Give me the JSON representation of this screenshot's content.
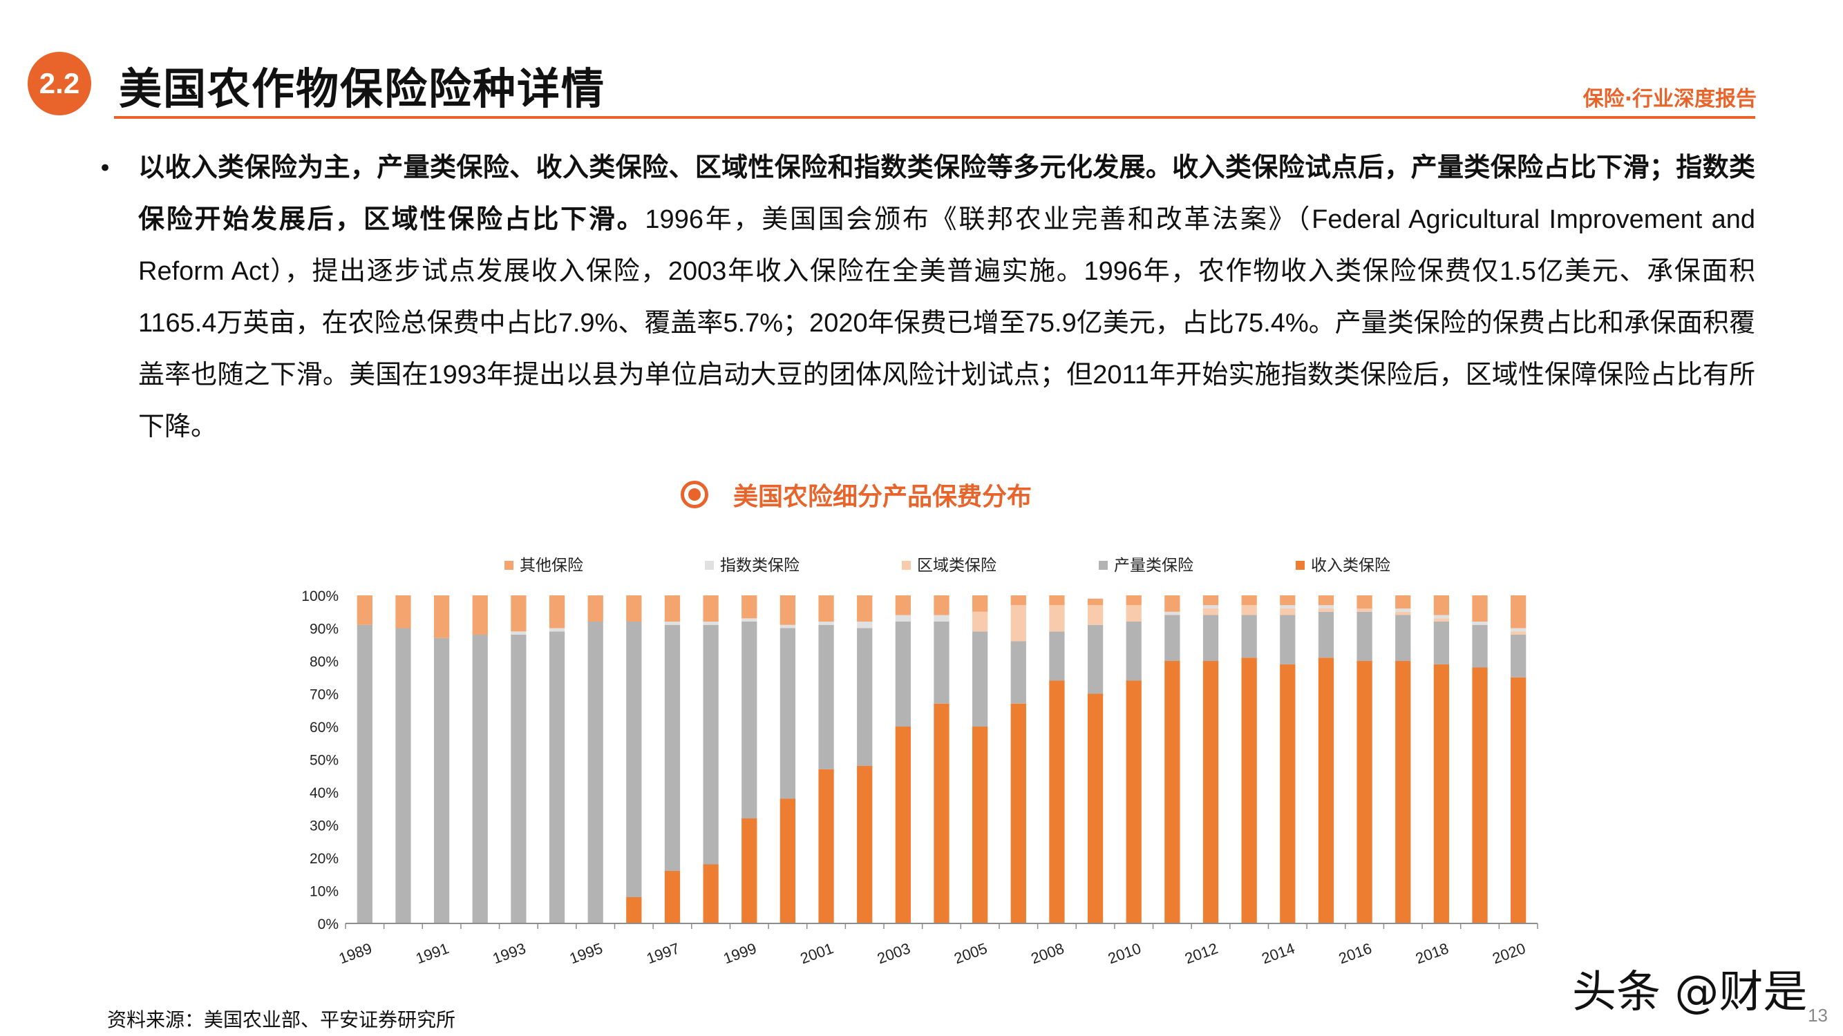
{
  "header": {
    "section_number": "2.2",
    "title": "美国农作物保险险种详情",
    "brand": "保险·行业深度报告"
  },
  "body": {
    "bold_text": "以收入类保险为主，产量类保险、收入类保险、区域性保险和指数类保险等多元化发展。收入类保险试点后，产量类保险占比下滑；指数类保险开始发展后，区域性保险占比下滑。",
    "normal_text": "1996年，美国国会颁布《联邦农业完善和改革法案》（Federal Agricultural Improvement and Reform Act），提出逐步试点发展收入保险，2003年收入保险在全美普遍实施。1996年，农作物收入类保险保费仅1.5亿美元、承保面积1165.4万英亩，在农险总保费中占比7.9%、覆盖率5.7%；2020年保费已增至75.9亿美元，占比75.4%。产量类保险的保费占比和承保面积覆盖率也随之下滑。美国在1993年提出以县为单位启动大豆的团体风险计划试点；但2011年开始实施指数类保险后，区域性保障保险占比有所下降。"
  },
  "chart_title": "美国农险细分产品保费分布",
  "chart_data": {
    "type": "bar",
    "stacked": true,
    "categories": [
      "1989",
      "1990",
      "1991",
      "1992",
      "1993",
      "1994",
      "1995",
      "1996",
      "1997",
      "1998",
      "1999",
      "2000",
      "2001",
      "2002",
      "2003",
      "2004",
      "2005",
      "2007",
      "2008",
      "2009",
      "2010",
      "2011",
      "2012",
      "2013",
      "2014",
      "2015",
      "2016",
      "2017",
      "2018",
      "2019",
      "2020"
    ],
    "x_tick_labels": [
      "1989",
      "1991",
      "1993",
      "1995",
      "1997",
      "1999",
      "2001",
      "2003",
      "2005",
      "2008",
      "2010",
      "2012",
      "2014",
      "2016",
      "2018",
      "2020"
    ],
    "series": [
      {
        "name": "收入类保险",
        "color": "#ed7d31",
        "values": [
          0,
          0,
          0,
          0,
          0,
          0,
          0,
          8,
          16,
          18,
          32,
          38,
          47,
          48,
          60,
          67,
          60,
          67,
          74,
          70,
          74,
          80,
          80,
          81,
          79,
          81,
          80,
          80,
          79,
          78,
          75
        ]
      },
      {
        "name": "产量类保险",
        "color": "#b3b3b3",
        "values": [
          91,
          90,
          87,
          88,
          88,
          89,
          92,
          84,
          75,
          73,
          60,
          52,
          44,
          42,
          32,
          25,
          29,
          19,
          15,
          21,
          18,
          14,
          14,
          13,
          15,
          14,
          15,
          14,
          13,
          13,
          13
        ]
      },
      {
        "name": "区域类保险",
        "color": "#f8cbad",
        "values": [
          0,
          0,
          0,
          0,
          0,
          0,
          0,
          0,
          0,
          0,
          0,
          0,
          0,
          0,
          0,
          0,
          6,
          11,
          8,
          6,
          5,
          0,
          2,
          3,
          2,
          1,
          1,
          1,
          1,
          0,
          1
        ]
      },
      {
        "name": "指数类保险",
        "color": "#e0e0e0",
        "values": [
          0,
          0,
          0,
          0,
          1,
          1,
          0,
          0,
          1,
          1,
          1,
          1,
          1,
          2,
          2,
          2,
          0,
          0,
          0,
          0,
          0,
          1,
          1,
          0,
          1,
          1,
          0,
          1,
          1,
          1,
          1
        ]
      },
      {
        "name": "其他保险",
        "color": "#f4a46e",
        "values": [
          9,
          10,
          13,
          12,
          11,
          10,
          8,
          8,
          8,
          8,
          7,
          9,
          8,
          8,
          6,
          6,
          5,
          3,
          3,
          2,
          3,
          5,
          3,
          3,
          3,
          3,
          4,
          4,
          6,
          8,
          10
        ]
      }
    ],
    "legend_order": [
      "其他保险",
      "指数类保险",
      "区域类保险",
      "产量类保险",
      "收入类保险"
    ],
    "legend_position": "top",
    "y_ticks": [
      "0%",
      "10%",
      "20%",
      "30%",
      "40%",
      "50%",
      "60%",
      "70%",
      "80%",
      "90%",
      "100%"
    ],
    "ylim": [
      0,
      100
    ],
    "grid": false
  },
  "footer": {
    "source": "资料来源：美国农业部、平安证券研究所",
    "watermark": "头条 @财是",
    "page_number": "13"
  }
}
